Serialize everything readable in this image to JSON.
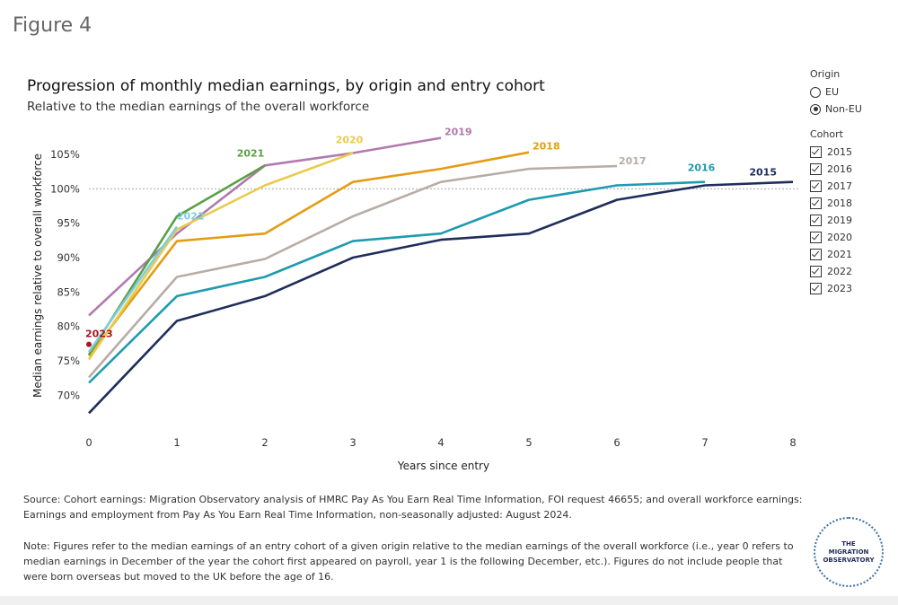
{
  "figure_label": "Figure 4",
  "chart_data": {
    "type": "line",
    "title": "Progression of monthly median earnings, by origin and entry cohort",
    "subtitle": "Relative to the median earnings of the overall workforce",
    "x_label": "Years since entry",
    "y_label": "Median earnings relative to overall workforce",
    "x": [
      0,
      1,
      2,
      3,
      4,
      5,
      6,
      7,
      8
    ],
    "xlim": [
      0,
      8
    ],
    "xticks": [
      0,
      1,
      2,
      3,
      4,
      5,
      6,
      7,
      8
    ],
    "ylim": [
      66,
      108
    ],
    "yticks": [
      {
        "value": 70,
        "label": "70%"
      },
      {
        "value": 75,
        "label": "75%"
      },
      {
        "value": 80,
        "label": "80%"
      },
      {
        "value": 85,
        "label": "85%"
      },
      {
        "value": 90,
        "label": "90%"
      },
      {
        "value": 95,
        "label": "95%"
      },
      {
        "value": 100,
        "label": "100%"
      },
      {
        "value": 105,
        "label": "105%"
      }
    ],
    "reference_line": 100,
    "grid": false,
    "series": [
      {
        "name": "2015",
        "color": "#1f2d5a",
        "values": [
          67.4,
          80.8,
          84.4,
          90,
          92.6,
          93.5,
          98.4,
          100.5,
          101
        ]
      },
      {
        "name": "2016",
        "color": "#1e9bb0",
        "values": [
          71.8,
          84.4,
          87.2,
          92.4,
          93.5,
          98.4,
          100.5,
          101,
          null
        ]
      },
      {
        "name": "2017",
        "color": "#b8ada5",
        "values": [
          72.6,
          87.2,
          89.8,
          96,
          101,
          102.9,
          103.3,
          null,
          null
        ]
      },
      {
        "name": "2018",
        "color": "#e39c14",
        "values": [
          75.7,
          92.4,
          93.5,
          101,
          102.9,
          105.3,
          null,
          null,
          null
        ]
      },
      {
        "name": "2019",
        "color": "#b07aaf",
        "values": [
          81.6,
          93.5,
          103.4,
          105.2,
          107.4,
          null,
          null,
          null,
          null
        ]
      },
      {
        "name": "2020",
        "color": "#e9cb4c",
        "values": [
          75.2,
          94.1,
          100.5,
          105.2,
          null,
          null,
          null,
          null,
          null
        ]
      },
      {
        "name": "2021",
        "color": "#5aa046",
        "values": [
          75.9,
          96,
          103.4,
          null,
          null,
          null,
          null,
          null,
          null
        ]
      },
      {
        "name": "2022",
        "color": "#7fcde0",
        "values": [
          76.3,
          94.5,
          null,
          null,
          null,
          null,
          null,
          null,
          null
        ]
      },
      {
        "name": "2023",
        "color": "#a8161d",
        "values": [
          77.4,
          null,
          null,
          null,
          null,
          null,
          null,
          null,
          null
        ]
      }
    ]
  },
  "filters": {
    "origin": {
      "title": "Origin",
      "options": [
        "EU",
        "Non-EU"
      ],
      "selected": "Non-EU"
    },
    "cohort": {
      "title": "Cohort"
    }
  },
  "source": "Source: Cohort earnings: Migration Observatory analysis of HMRC Pay As You Earn Real Time Information, FOI request 46655; and overall workforce earnings: Earnings and employment from Pay As You Earn Real Time Information, non-seasonally adjusted: August 2024.",
  "note": "Note: Figures refer to the median earnings of an entry cohort of a given origin relative to the median earnings of the overall workforce (i.e., year 0 refers to median earnings in December of the year the cohort first appeared on payroll, year 1 is the following December, etc.). Figures do not include people that were born overseas but moved to the UK before the age of 16.",
  "logo": [
    "THE",
    "MIGRATION",
    "OBSERVATORY"
  ]
}
